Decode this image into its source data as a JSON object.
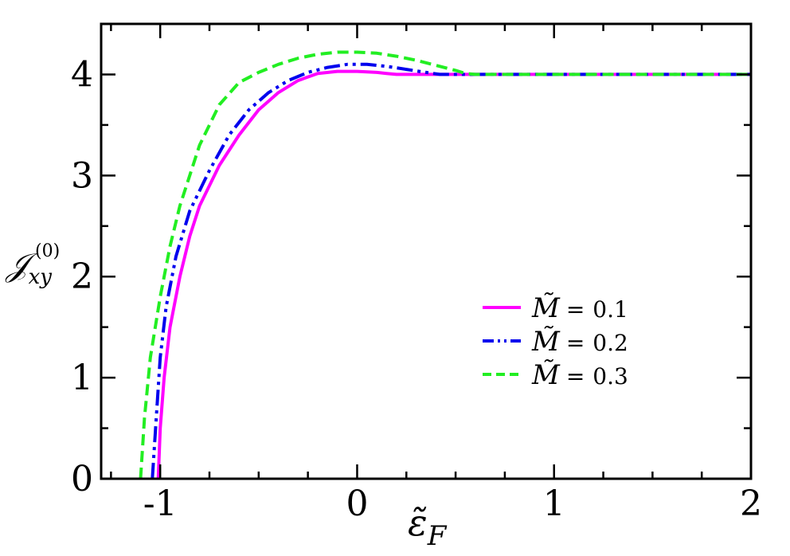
{
  "chart_data": {
    "type": "line",
    "xlabel": "ε̃",
    "xlabel_sub": "F",
    "ylabel": "𝒥",
    "ylabel_sub": "xy",
    "ylabel_sup": "(0)",
    "xlim": [
      -1.3,
      2.0
    ],
    "ylim": [
      0,
      4.5
    ],
    "xticks": [
      -1,
      0,
      1,
      2
    ],
    "yticks": [
      0,
      1,
      2,
      3,
      4
    ],
    "grid": false,
    "legend_position": "right-center",
    "series": [
      {
        "name": "M̃ = 0.1",
        "legend_symbol": "M̃",
        "legend_eq": "=",
        "legend_value": "0.1",
        "color": "#ff00ff",
        "dash": "solid",
        "x": [
          -1.01,
          -1.0,
          -0.98,
          -0.95,
          -0.9,
          -0.85,
          -0.8,
          -0.7,
          -0.6,
          -0.5,
          -0.4,
          -0.3,
          -0.2,
          -0.1,
          0.0,
          0.1,
          0.15,
          0.2,
          0.3,
          0.4,
          0.6,
          0.8,
          1.0,
          1.5,
          2.0
        ],
        "y": [
          0.0,
          0.5,
          1.0,
          1.5,
          2.0,
          2.4,
          2.7,
          3.1,
          3.4,
          3.65,
          3.82,
          3.94,
          4.01,
          4.03,
          4.03,
          4.02,
          4.01,
          4.0,
          4.0,
          4.0,
          4.0,
          4.0,
          4.0,
          4.0,
          4.0
        ]
      },
      {
        "name": "M̃ = 0.2",
        "legend_symbol": "M̃",
        "legend_eq": "=",
        "legend_value": "0.2",
        "color": "#0000ee",
        "dash": "dash-dot-dot",
        "x": [
          -1.04,
          -1.02,
          -1.0,
          -0.97,
          -0.92,
          -0.85,
          -0.75,
          -0.65,
          -0.55,
          -0.45,
          -0.35,
          -0.25,
          -0.15,
          -0.05,
          0.05,
          0.15,
          0.25,
          0.35,
          0.42,
          0.5,
          0.7,
          1.0,
          1.5,
          2.0
        ],
        "y": [
          0.0,
          0.6,
          1.2,
          1.7,
          2.2,
          2.65,
          3.05,
          3.4,
          3.65,
          3.82,
          3.94,
          4.02,
          4.07,
          4.1,
          4.1,
          4.08,
          4.05,
          4.02,
          4.0,
          4.0,
          4.0,
          4.0,
          4.0,
          4.0
        ]
      },
      {
        "name": "M̃ = 0.3",
        "legend_symbol": "M̃",
        "legend_eq": "=",
        "legend_value": "0.3",
        "color": "#22ee22",
        "dash": "dashed",
        "x": [
          -1.1,
          -1.08,
          -1.05,
          -1.0,
          -0.95,
          -0.9,
          -0.8,
          -0.7,
          -0.6,
          -0.5,
          -0.4,
          -0.3,
          -0.2,
          -0.1,
          0.0,
          0.1,
          0.2,
          0.3,
          0.4,
          0.5,
          0.55,
          0.6,
          0.8,
          1.0,
          1.5,
          2.0
        ],
        "y": [
          0.0,
          0.6,
          1.2,
          1.8,
          2.3,
          2.7,
          3.3,
          3.7,
          3.92,
          4.02,
          4.1,
          4.16,
          4.2,
          4.22,
          4.22,
          4.21,
          4.18,
          4.14,
          4.09,
          4.04,
          4.01,
          4.0,
          4.0,
          4.0,
          4.0,
          4.0
        ]
      }
    ]
  }
}
